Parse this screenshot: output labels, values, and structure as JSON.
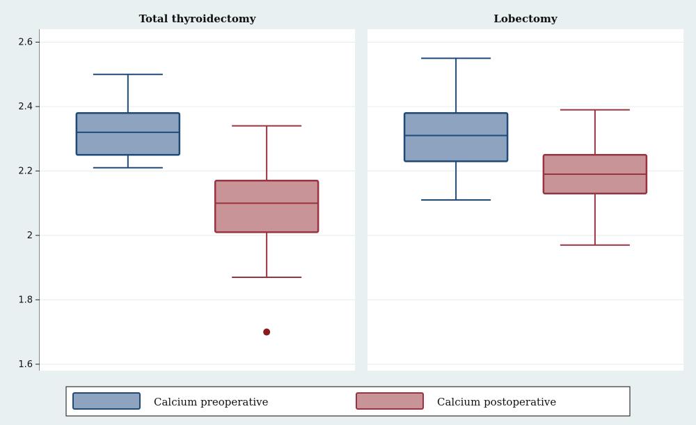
{
  "chart_data": {
    "type": "boxplot",
    "ylim": [
      1.58,
      2.64
    ],
    "yticks": [
      {
        "value": 1.6,
        "label": "1.6"
      },
      {
        "value": 1.8,
        "label": "1.8"
      },
      {
        "value": 2.0,
        "label": "2"
      },
      {
        "value": 2.2,
        "label": "2.2"
      },
      {
        "value": 2.4,
        "label": "2.4"
      },
      {
        "value": 2.6,
        "label": "2.6"
      }
    ],
    "grid": true,
    "legend_position": "bottom",
    "series": [
      {
        "name": "Calcium preoperative",
        "fill": "#8da3bf",
        "stroke": "#1f4a78"
      },
      {
        "name": "Calcium postoperative",
        "fill": "#c99497",
        "stroke": "#9a3340"
      }
    ],
    "panels": [
      {
        "title": "Total thyroidectomy",
        "boxes": [
          {
            "series": 0,
            "whisker_low": 2.21,
            "q1": 2.25,
            "median": 2.32,
            "q3": 2.38,
            "whisker_high": 2.5,
            "outliers": []
          },
          {
            "series": 1,
            "whisker_low": 1.87,
            "q1": 2.01,
            "median": 2.1,
            "q3": 2.17,
            "whisker_high": 2.34,
            "outliers": [
              1.7
            ]
          }
        ]
      },
      {
        "title": "Lobectomy",
        "boxes": [
          {
            "series": 0,
            "whisker_low": 2.11,
            "q1": 2.23,
            "median": 2.31,
            "q3": 2.38,
            "whisker_high": 2.55,
            "outliers": []
          },
          {
            "series": 1,
            "whisker_low": 1.97,
            "q1": 2.13,
            "median": 2.19,
            "q3": 2.25,
            "whisker_high": 2.39,
            "outliers": []
          }
        ]
      }
    ]
  }
}
